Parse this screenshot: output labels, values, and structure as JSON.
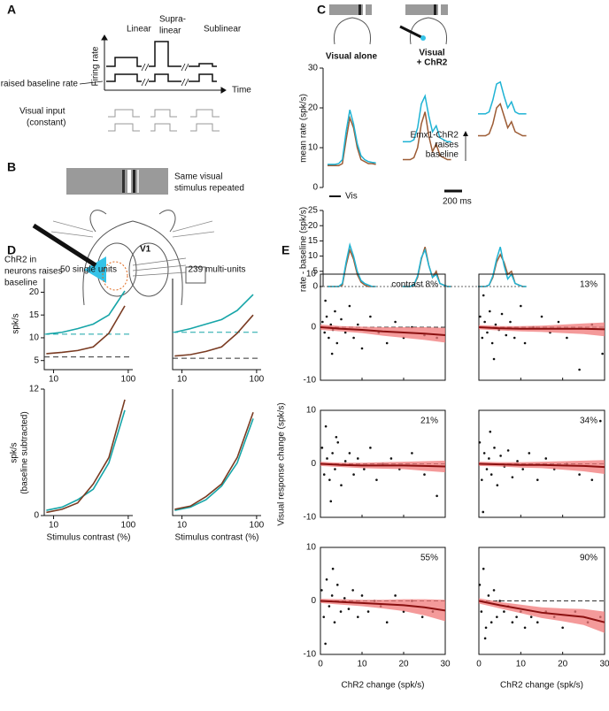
{
  "panel_a": {
    "label": "A",
    "columns": [
      [
        "Linear"
      ],
      [
        "Supra-",
        "linear"
      ],
      [
        "Sublinear"
      ]
    ],
    "y_label": "Firing rate",
    "baseline_label": "raised baseline rate",
    "x_label": "Time",
    "input_label": "Visual input",
    "input_note": "(constant)"
  },
  "panel_b": {
    "label": "B",
    "stimulus_note": [
      "Same visual",
      "stimulus repeated"
    ],
    "chr2_note": [
      "ChR2 in",
      "neurons raises",
      "baseline"
    ],
    "area": "V1"
  },
  "panel_c": {
    "label": "C",
    "condition_labels": [
      [
        "Visual alone"
      ],
      [
        "Visual",
        "+ ChR2"
      ]
    ],
    "colors": [
      "#9c5b34",
      "#1fb3d4"
    ],
    "stim_bar": "Vis",
    "time_bar": "200 ms",
    "note": [
      "Emx1-ChR2",
      "raises",
      "baseline"
    ],
    "top": {
      "y_label": "mean rate (spk/s)",
      "ylim": [
        0,
        30
      ],
      "yticks": [
        0,
        10,
        20,
        30
      ],
      "groups": [
        [
          [
            5.5,
            5.5,
            5.5,
            5.5,
            6,
            12,
            17.5,
            15,
            10,
            7,
            6.5,
            6,
            6,
            5.8
          ],
          [
            5.8,
            5.8,
            5.8,
            6,
            7,
            14,
            19.5,
            16,
            11,
            8,
            7,
            6.5,
            6.3,
            6.2
          ]
        ],
        [
          [
            7,
            7,
            7,
            7.5,
            10,
            16,
            19,
            13,
            9,
            11,
            8,
            7.5,
            7,
            7
          ],
          [
            11.5,
            11.5,
            11.5,
            12,
            15,
            21,
            23,
            18,
            14,
            15.5,
            12.5,
            12,
            11.5,
            11.5
          ]
        ],
        [
          [
            13,
            13,
            13,
            13.5,
            16,
            20,
            21,
            18,
            15,
            16.5,
            14,
            13.5,
            13,
            13
          ],
          [
            18.5,
            18.5,
            18.5,
            19,
            22,
            26,
            26.5,
            23,
            20,
            21.5,
            19,
            18.5,
            18.5,
            18.5
          ]
        ]
      ]
    },
    "bottom": {
      "y_label": "rate - baseline (spk/s)",
      "ylim": [
        0,
        25
      ],
      "yticks": [
        0,
        5,
        10,
        15,
        20,
        25
      ],
      "groups": [
        [
          [
            0,
            0,
            0,
            0,
            0.5,
            7,
            12,
            9,
            4,
            1.5,
            0.5,
            0,
            0,
            0
          ],
          [
            0,
            0,
            0,
            0,
            1,
            8,
            13.7,
            10,
            5,
            2,
            1,
            0.5,
            0,
            0
          ]
        ],
        [
          [
            0,
            0,
            0,
            0.5,
            3,
            9,
            13,
            7,
            3,
            5,
            1,
            0.5,
            0,
            0
          ],
          [
            0,
            0,
            0,
            0.5,
            3.5,
            9.5,
            12,
            7,
            3,
            4,
            1,
            0.5,
            0,
            0
          ]
        ],
        [
          [
            0,
            0,
            0,
            0.5,
            3,
            8,
            10.5,
            8,
            4,
            5,
            1,
            0.5,
            0,
            0
          ],
          [
            0,
            0,
            0,
            0.5,
            3.5,
            9,
            13,
            7,
            2.5,
            4,
            1,
            0.5,
            0,
            0
          ]
        ]
      ]
    }
  },
  "panel_d": {
    "label": "D",
    "titles": [
      "50 single units",
      "239 multi-units"
    ],
    "y_label_top": "spk/s",
    "y_label_bottom": [
      "spk/s",
      "(baseline subtracted)"
    ],
    "x_label": "Stimulus contrast (%)",
    "x": [
      8,
      13,
      21,
      34,
      55,
      90
    ],
    "xlim": [
      7.5,
      115
    ],
    "xticks": [
      10,
      100
    ],
    "log_x": true,
    "charts": [
      {
        "ylim": [
          3,
          23
        ],
        "yticks": [
          5,
          10,
          15,
          20
        ],
        "series": [
          {
            "color": "#16a5a8",
            "values": [
              10.8,
              11.2,
              12,
              13,
              15,
              20.3
            ]
          },
          {
            "color": "#7a3b22",
            "values": [
              6.5,
              6.8,
              7.2,
              8,
              11,
              17
            ]
          }
        ],
        "baselines": [
          {
            "color": "#16a5a8",
            "value": 10.8
          },
          {
            "color": "#333333",
            "value": 5.8
          }
        ]
      },
      {
        "ylim": [
          3,
          23
        ],
        "yticks": [],
        "series": [
          {
            "color": "#16a5a8",
            "values": [
              11.2,
              12,
              13,
              14,
              16,
              19.5
            ]
          },
          {
            "color": "#7a3b22",
            "values": [
              6,
              6.3,
              7,
              8,
              11,
              15
            ]
          }
        ],
        "baselines": [
          {
            "color": "#16a5a8",
            "value": 11.2
          },
          {
            "color": "#333333",
            "value": 5.5
          }
        ]
      },
      {
        "ylim": [
          0,
          12
        ],
        "yticks": [
          0,
          12
        ],
        "series": [
          {
            "color": "#16a5a8",
            "values": [
              0.5,
              0.8,
              1.5,
              2.5,
              5,
              10
            ]
          },
          {
            "color": "#7a3b22",
            "values": [
              0.3,
              0.6,
              1.2,
              3,
              5.5,
              11
            ]
          }
        ],
        "baselines": []
      },
      {
        "ylim": [
          0,
          12
        ],
        "yticks": [],
        "series": [
          {
            "color": "#16a5a8",
            "values": [
              0.5,
              0.8,
              1.5,
              2.8,
              5,
              9.2
            ]
          },
          {
            "color": "#7a3b22",
            "values": [
              0.6,
              0.9,
              1.8,
              3,
              5.5,
              9.8
            ]
          }
        ],
        "baselines": []
      }
    ]
  },
  "panel_e": {
    "label": "E",
    "y_label": "Visual response change (spk/s)",
    "x_label": "ChR2 change (spk/s)",
    "xlim": [
      0,
      30
    ],
    "ylim": [
      -10,
      10
    ],
    "xticks": [
      0,
      10,
      20,
      30
    ],
    "yticks": [
      -10,
      0,
      10
    ],
    "point_color": "#111111",
    "band_color": "#f07878",
    "line_color": "#8b1010",
    "charts": [
      {
        "label": "contrast 8%",
        "x": [
          0.5,
          1,
          1.5,
          2,
          2.5,
          3,
          3.5,
          4,
          5,
          6,
          7,
          8,
          9,
          10,
          12,
          14,
          16,
          18,
          20,
          22,
          25,
          28,
          1.2,
          2.8
        ],
        "y": [
          1,
          -1,
          2,
          -2,
          0.5,
          -0.5,
          3,
          -3,
          1.5,
          -1,
          4,
          -2,
          0.5,
          -4,
          2,
          -1,
          -3,
          1,
          -2,
          0,
          -1.5,
          -2,
          5,
          -5
        ],
        "mean": {
          "x": [
            0,
            5,
            10,
            15,
            20,
            25,
            30
          ],
          "values": [
            0,
            -0.3,
            -0.5,
            -0.8,
            -1,
            -1.2,
            -1.5
          ],
          "band": [
            0.5,
            0.5,
            0.6,
            0.8,
            1,
            1.2,
            1.4
          ]
        }
      },
      {
        "label": "13%",
        "x": [
          0.3,
          0.8,
          1.4,
          2,
          2.6,
          3.2,
          4,
          4.8,
          5.5,
          6.5,
          7.5,
          8.5,
          10,
          11,
          13,
          15,
          17,
          19,
          21,
          24,
          27,
          29.5,
          1.1,
          3.6
        ],
        "y": [
          2,
          -2,
          1,
          -1,
          3,
          -3,
          0.5,
          -0.5,
          2.5,
          -1.5,
          1,
          -2,
          4,
          -3,
          0,
          2,
          -1,
          1,
          -2,
          -8,
          0.5,
          -5,
          6,
          -6
        ],
        "mean": {
          "x": [
            0,
            5,
            10,
            15,
            20,
            25,
            30
          ],
          "values": [
            0,
            -0.2,
            -0.3,
            -0.3,
            -0.3,
            -0.3,
            -0.4
          ],
          "band": [
            0.4,
            0.4,
            0.5,
            0.6,
            0.8,
            1,
            1.3
          ]
        }
      },
      {
        "label": "21%",
        "x": [
          0.4,
          0.9,
          1.6,
          2.2,
          2.9,
          3.5,
          4.2,
          5,
          6,
          7,
          8,
          9,
          10.5,
          12,
          13.5,
          15,
          17,
          19,
          22,
          25,
          28,
          1.3,
          2.5,
          3.8
        ],
        "y": [
          3,
          -2,
          1,
          -3,
          2,
          -1,
          4,
          -4,
          0.5,
          2,
          -2,
          1,
          -1,
          3,
          -3,
          0,
          1,
          -1,
          2,
          -2,
          -6,
          7,
          -7,
          5
        ],
        "mean": {
          "x": [
            0,
            5,
            10,
            15,
            20,
            25,
            30
          ],
          "values": [
            0,
            -0.2,
            -0.3,
            -0.3,
            -0.3,
            -0.4,
            -0.5
          ],
          "band": [
            0.4,
            0.4,
            0.5,
            0.6,
            0.7,
            0.9,
            1.1
          ]
        }
      },
      {
        "label": "34%",
        "x": [
          0.2,
          0.7,
          1.3,
          1.9,
          2.4,
          3,
          3.7,
          4.4,
          5.2,
          6.1,
          7,
          8,
          9.2,
          10.5,
          12,
          14,
          16,
          18,
          21,
          24,
          27,
          29,
          1,
          2.7
        ],
        "y": [
          4,
          -3,
          2,
          -1,
          1,
          -2,
          3,
          -4,
          1.5,
          -0.5,
          2.5,
          -2.5,
          0.5,
          -1,
          2,
          -3,
          1,
          -1,
          0,
          -2,
          -3,
          8,
          -9,
          6
        ],
        "mean": {
          "x": [
            0,
            5,
            10,
            15,
            20,
            25,
            30
          ],
          "values": [
            0,
            -0.1,
            -0.2,
            -0.2,
            -0.3,
            -0.4,
            -0.6
          ],
          "band": [
            0.4,
            0.4,
            0.5,
            0.6,
            0.8,
            1,
            1.3
          ]
        }
      },
      {
        "label": "55%",
        "x": [
          0.3,
          0.8,
          1.5,
          2.1,
          2.8,
          3.4,
          4.1,
          4.9,
          5.8,
          6.8,
          7.8,
          9,
          10,
          11.5,
          13,
          14.5,
          16,
          18,
          20,
          22,
          24.5,
          27,
          1.2,
          3
        ],
        "y": [
          2,
          -3,
          4,
          -1,
          1,
          -4,
          3,
          -2,
          0.5,
          -1.5,
          2,
          -3,
          1,
          -2,
          0,
          -1,
          -4,
          1,
          -2,
          0,
          -3,
          -2,
          -8,
          6
        ],
        "mean": {
          "x": [
            0,
            5,
            10,
            15,
            20,
            25,
            30
          ],
          "values": [
            0,
            -0.2,
            -0.4,
            -0.6,
            -0.8,
            -1.2,
            -1.8
          ],
          "band": [
            0.4,
            0.5,
            0.6,
            0.8,
            1.1,
            1.5,
            2
          ]
        }
      },
      {
        "label": "90%",
        "x": [
          0.2,
          0.6,
          1.1,
          1.7,
          2.3,
          3,
          3.6,
          4.3,
          5,
          6,
          7,
          8,
          9,
          10,
          11,
          12.5,
          14,
          16,
          18,
          20,
          23,
          26,
          29,
          1.5
        ],
        "y": [
          3,
          -2,
          6,
          -5,
          1,
          -4,
          2,
          -3,
          0,
          -2,
          -1,
          -4,
          -3,
          -2,
          -5,
          -3,
          -4,
          -2,
          -3,
          -5,
          -2,
          -4,
          -3,
          -7
        ],
        "mean": {
          "x": [
            0,
            5,
            10,
            15,
            20,
            25,
            30
          ],
          "values": [
            0,
            -0.8,
            -1.5,
            -2.2,
            -2.6,
            -3,
            -4
          ],
          "band": [
            0.5,
            0.6,
            0.8,
            1,
            1.2,
            1.5,
            2
          ]
        }
      }
    ]
  }
}
